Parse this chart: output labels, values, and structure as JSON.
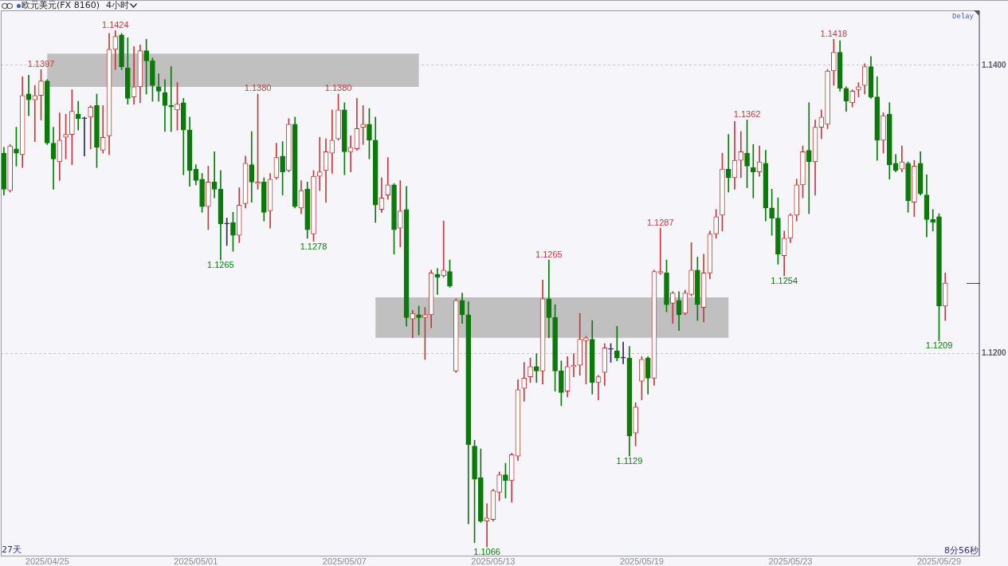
{
  "chart_data": {
    "type": "candlestick",
    "title": "欧元美元(FX 8160)",
    "subtitle": "4小时",
    "categories": [
      null,
      null,
      null,
      null,
      null,
      null,
      null,
      "2025/04/25",
      null,
      null,
      null,
      null,
      null,
      null,
      null,
      null,
      null,
      null,
      null,
      null,
      null,
      null,
      null,
      null,
      null,
      null,
      null,
      null,
      null,
      null,
      null,
      "2025/05/01",
      null,
      null,
      null,
      null,
      null,
      null,
      null,
      null,
      null,
      null,
      null,
      null,
      null,
      null,
      null,
      null,
      null,
      null,
      null,
      null,
      null,
      null,
      null,
      "2025/05/07",
      null,
      null,
      null,
      null,
      null,
      null,
      null,
      null,
      null,
      null,
      null,
      null,
      null,
      null,
      null,
      null,
      null,
      null,
      null,
      null,
      null,
      null,
      null,
      "2025/05/13",
      null,
      null,
      null,
      null,
      null,
      null,
      null,
      null,
      null,
      null,
      null,
      null,
      null,
      null,
      null,
      null,
      null,
      null,
      null,
      null,
      null,
      null,
      null,
      "2025/05/19",
      null,
      null,
      null,
      null,
      null,
      null,
      null,
      null,
      null,
      null,
      null,
      null,
      null,
      null,
      null,
      null,
      null,
      null,
      null,
      null,
      null,
      null,
      null,
      "2025/05/23",
      null,
      null,
      null,
      null,
      null,
      null,
      null,
      null,
      null,
      null,
      null,
      null,
      null,
      null,
      null,
      null,
      null,
      null,
      null,
      null,
      null,
      null,
      null,
      "2025/05/29",
      null,
      null,
      null,
      null,
      null,
      null
    ],
    "ohlc": [
      [
        1.1339,
        1.1343,
        1.131,
        1.1314
      ],
      [
        1.1313,
        1.1345,
        1.1312,
        1.1344
      ],
      [
        1.1342,
        1.1357,
        1.133,
        1.1339
      ],
      [
        1.1338,
        1.1392,
        1.1329,
        1.1379
      ],
      [
        1.138,
        1.1393,
        1.1365,
        1.1376
      ],
      [
        1.1376,
        1.1386,
        1.1347,
        1.1379
      ],
      [
        1.1379,
        1.1397,
        1.1362,
        1.1389
      ],
      [
        1.1389,
        1.139,
        1.1345,
        1.1346
      ],
      [
        1.1346,
        1.1357,
        1.1314,
        1.1335
      ],
      [
        1.1333,
        1.1367,
        1.132,
        1.1348
      ],
      [
        1.135,
        1.1366,
        1.1335,
        1.1352
      ],
      [
        1.1352,
        1.1383,
        1.1331,
        1.1368
      ],
      [
        1.1366,
        1.1375,
        1.1355,
        1.1363
      ],
      [
        1.1363,
        1.1364,
        1.1337,
        1.1363
      ],
      [
        1.1364,
        1.1372,
        1.1342,
        1.1371
      ],
      [
        1.1372,
        1.138,
        1.1329,
        1.1343
      ],
      [
        1.1341,
        1.1372,
        1.1339,
        1.135
      ],
      [
        1.1351,
        1.1422,
        1.1338,
        1.1411
      ],
      [
        1.1411,
        1.1424,
        1.1397,
        1.142
      ],
      [
        1.1421,
        1.1422,
        1.1397,
        1.1399
      ],
      [
        1.1398,
        1.1419,
        1.1373,
        1.1377
      ],
      [
        1.1378,
        1.1413,
        1.1373,
        1.1385
      ],
      [
        1.1385,
        1.1414,
        1.1374,
        1.141
      ],
      [
        1.141,
        1.1418,
        1.138,
        1.1403
      ],
      [
        1.1403,
        1.1405,
        1.1375,
        1.1386
      ],
      [
        1.1385,
        1.1394,
        1.1375,
        1.1382
      ],
      [
        1.1381,
        1.139,
        1.1354,
        1.1372
      ],
      [
        1.1372,
        1.1399,
        1.1354,
        1.1371
      ],
      [
        1.1369,
        1.1388,
        1.1355,
        1.1373
      ],
      [
        1.1374,
        1.1377,
        1.1324,
        1.1355
      ],
      [
        1.1355,
        1.1364,
        1.1316,
        1.1327
      ],
      [
        1.1328,
        1.1331,
        1.1317,
        1.132
      ],
      [
        1.1321,
        1.1325,
        1.1298,
        1.1302
      ],
      [
        1.1302,
        1.133,
        1.1286,
        1.1319
      ],
      [
        1.1319,
        1.134,
        1.1308,
        1.1314
      ],
      [
        1.1314,
        1.1327,
        1.1265,
        1.129
      ],
      [
        1.129,
        1.1294,
        1.1275,
        1.129
      ],
      [
        1.1291,
        1.1298,
        1.1271,
        1.1282
      ],
      [
        1.1282,
        1.1315,
        1.1277,
        1.1303
      ],
      [
        1.1304,
        1.1337,
        1.1301,
        1.1332
      ],
      [
        1.1331,
        1.1354,
        1.1305,
        1.1319
      ],
      [
        1.1318,
        1.138,
        1.1314,
        1.1319
      ],
      [
        1.1319,
        1.1322,
        1.1292,
        1.1298
      ],
      [
        1.1299,
        1.1325,
        1.1287,
        1.1321
      ],
      [
        1.1322,
        1.1346,
        1.1321,
        1.1336
      ],
      [
        1.1337,
        1.1347,
        1.131,
        1.1326
      ],
      [
        1.1327,
        1.1363,
        1.1326,
        1.1359
      ],
      [
        1.1359,
        1.1364,
        1.1301,
        1.1302
      ],
      [
        1.1301,
        1.132,
        1.1297,
        1.1313
      ],
      [
        1.1314,
        1.1319,
        1.128,
        1.1286
      ],
      [
        1.1283,
        1.1327,
        1.1278,
        1.1323
      ],
      [
        1.1323,
        1.135,
        1.1313,
        1.1326
      ],
      [
        1.1327,
        1.1349,
        1.1305,
        1.134
      ],
      [
        1.1339,
        1.1369,
        1.1325,
        1.1348
      ],
      [
        1.1349,
        1.138,
        1.1348,
        1.1369
      ],
      [
        1.1369,
        1.1374,
        1.1324,
        1.134
      ],
      [
        1.134,
        1.1351,
        1.1326,
        1.1343
      ],
      [
        1.1342,
        1.1377,
        1.1341,
        1.1356
      ],
      [
        1.1357,
        1.1372,
        1.1345,
        1.1359
      ],
      [
        1.1359,
        1.137,
        1.1335,
        1.1348
      ],
      [
        1.1348,
        1.1364,
        1.1291,
        1.1303
      ],
      [
        1.13,
        1.1322,
        1.1298,
        1.1308
      ],
      [
        1.131,
        1.1336,
        1.1307,
        1.1317
      ],
      [
        1.1317,
        1.1318,
        1.1269,
        1.1286
      ],
      [
        1.1287,
        1.132,
        1.1274,
        1.1299
      ],
      [
        1.13,
        1.1316,
        1.1219,
        1.1225
      ],
      [
        1.1224,
        1.123,
        1.1211,
        1.1228
      ],
      [
        1.1227,
        1.1233,
        1.1213,
        1.1225
      ],
      [
        1.1225,
        1.1232,
        1.1196,
        1.1227
      ],
      [
        1.1227,
        1.1258,
        1.1218,
        1.1256
      ],
      [
        1.1255,
        1.1259,
        1.1241,
        1.1253
      ],
      [
        1.1254,
        1.1292,
        1.1253,
        1.1258
      ],
      [
        1.1257,
        1.1265,
        1.1246,
        1.1247
      ],
      [
        1.1188,
        1.1238,
        1.1187,
        1.1237
      ],
      [
        1.1237,
        1.1242,
        1.1221,
        1.1227
      ],
      [
        1.1227,
        1.1236,
        1.1082,
        1.1137
      ],
      [
        1.1136,
        1.114,
        1.1069,
        1.1113
      ],
      [
        1.1114,
        1.1134,
        1.1083,
        1.1084
      ],
      [
        1.1084,
        1.1096,
        1.1066,
        1.1086
      ],
      [
        1.1085,
        1.1106,
        1.1084,
        1.1105
      ],
      [
        1.1104,
        1.1118,
        1.1098,
        1.1116
      ],
      [
        1.1116,
        1.1124,
        1.11,
        1.1112
      ],
      [
        1.1112,
        1.1131,
        1.1097,
        1.113
      ],
      [
        1.1129,
        1.1182,
        1.1126,
        1.1175
      ],
      [
        1.1176,
        1.1194,
        1.1167,
        1.1183
      ],
      [
        1.1184,
        1.1197,
        1.118,
        1.1191
      ],
      [
        1.1191,
        1.12,
        1.118,
        1.1188
      ],
      [
        1.1188,
        1.1251,
        1.1179,
        1.1238
      ],
      [
        1.1238,
        1.1265,
        1.1211,
        1.1225
      ],
      [
        1.1225,
        1.1234,
        1.1174,
        1.1188
      ],
      [
        1.1188,
        1.1195,
        1.1164,
        1.1173
      ],
      [
        1.1174,
        1.1198,
        1.117,
        1.1191
      ],
      [
        1.1191,
        1.12,
        1.1184,
        1.1192
      ],
      [
        1.1192,
        1.1228,
        1.1185,
        1.121
      ],
      [
        1.1209,
        1.1212,
        1.1179,
        1.1211
      ],
      [
        1.121,
        1.1223,
        1.1172,
        1.118
      ],
      [
        1.118,
        1.1185,
        1.1168,
        1.1184
      ],
      [
        1.1187,
        1.1207,
        1.1178,
        1.1204
      ],
      [
        1.1203,
        1.1207,
        1.1194,
        1.1203
      ],
      [
        1.1202,
        1.1219,
        1.1195,
        1.1197
      ],
      [
        1.1197,
        1.1208,
        1.1193,
        1.1197
      ],
      [
        1.1197,
        1.1205,
        1.1129,
        1.1143
      ],
      [
        1.1145,
        1.1166,
        1.1136,
        1.1163
      ],
      [
        1.1181,
        1.1198,
        1.1168,
        1.1196
      ],
      [
        1.1197,
        1.1198,
        1.1172,
        1.1183
      ],
      [
        1.1183,
        1.1258,
        1.1178,
        1.1257
      ],
      [
        1.1256,
        1.1287,
        1.1255,
        1.1257
      ],
      [
        1.1256,
        1.1265,
        1.1229,
        1.1234
      ],
      [
        1.1235,
        1.1243,
        1.1221,
        1.1242
      ],
      [
        1.1237,
        1.1243,
        1.1216,
        1.1227
      ],
      [
        1.1228,
        1.1244,
        1.1227,
        1.1242
      ],
      [
        1.1241,
        1.1277,
        1.124,
        1.1258
      ],
      [
        1.1258,
        1.1267,
        1.1223,
        1.1234
      ],
      [
        1.1232,
        1.1269,
        1.1222,
        1.1256
      ],
      [
        1.1256,
        1.1285,
        1.1252,
        1.1283
      ],
      [
        1.1283,
        1.13,
        1.128,
        1.1295
      ],
      [
        1.1296,
        1.1339,
        1.1285,
        1.1328
      ],
      [
        1.1328,
        1.1352,
        1.1312,
        1.1322
      ],
      [
        1.1322,
        1.1361,
        1.1314,
        1.1334
      ],
      [
        1.1334,
        1.1354,
        1.1322,
        1.134
      ],
      [
        1.1339,
        1.1362,
        1.1315,
        1.133
      ],
      [
        1.1329,
        1.1345,
        1.1308,
        1.1326
      ],
      [
        1.1326,
        1.1344,
        1.1323,
        1.1333
      ],
      [
        1.1332,
        1.1341,
        1.1292,
        1.1301
      ],
      [
        1.1301,
        1.1314,
        1.1282,
        1.1294
      ],
      [
        1.1294,
        1.1308,
        1.1262,
        1.1269
      ],
      [
        1.1268,
        1.1285,
        1.1254,
        1.128
      ],
      [
        1.128,
        1.1297,
        1.1277,
        1.1296
      ],
      [
        1.1296,
        1.1321,
        1.1292,
        1.1317
      ],
      [
        1.1317,
        1.1344,
        1.1308,
        1.134
      ],
      [
        1.1341,
        1.1374,
        1.1297,
        1.1333
      ],
      [
        1.1333,
        1.1362,
        1.131,
        1.1357
      ],
      [
        1.1357,
        1.1369,
        1.1349,
        1.1364
      ],
      [
        1.1359,
        1.1397,
        1.1356,
        1.1396
      ],
      [
        1.1396,
        1.1418,
        1.1386,
        1.1409
      ],
      [
        1.1409,
        1.1417,
        1.1382,
        1.1384
      ],
      [
        1.1384,
        1.1385,
        1.1368,
        1.1375
      ],
      [
        1.1374,
        1.1383,
        1.1371,
        1.1382
      ],
      [
        1.1383,
        1.1388,
        1.1378,
        1.1385
      ],
      [
        1.1386,
        1.1401,
        1.138,
        1.1399
      ],
      [
        1.1399,
        1.1406,
        1.1377,
        1.1378
      ],
      [
        1.1378,
        1.1392,
        1.1334,
        1.1348
      ],
      [
        1.1348,
        1.1367,
        1.1339,
        1.1365
      ],
      [
        1.1366,
        1.1374,
        1.1321,
        1.1331
      ],
      [
        1.1332,
        1.1338,
        1.1326,
        1.1327
      ],
      [
        1.1328,
        1.1344,
        1.1326,
        1.1333
      ],
      [
        1.1332,
        1.1333,
        1.1298,
        1.1306
      ],
      [
        1.1305,
        1.1334,
        1.1295,
        1.133
      ],
      [
        1.1332,
        1.134,
        1.131,
        1.1311
      ],
      [
        1.131,
        1.1324,
        1.1281,
        1.1293
      ],
      [
        1.1293,
        1.13,
        1.1285,
        1.1291
      ],
      [
        1.1295,
        1.1297,
        1.1209,
        1.1233
      ],
      [
        1.1233,
        1.1256,
        1.1223,
        1.1249
      ],
      null,
      null,
      null,
      null,
      null
    ],
    "colors": [
      "#0b7a0b",
      "#c23b3b",
      "#0b7a0b",
      "#c23b3b",
      "#0b7a0b",
      "#c23b3b",
      "#c23b3b",
      "#0b7a0b",
      "#0b7a0b",
      "#c23b3b",
      "#c23b3b",
      "#c23b3b",
      "#0b7a0b",
      "#2a2a5a",
      "#c23b3b",
      "#0b7a0b",
      "#c23b3b",
      "#c23b3b",
      "#c23b3b",
      "#0b7a0b",
      "#0b7a0b",
      "#c23b3b",
      "#c23b3b",
      "#0b7a0b",
      "#0b7a0b",
      "#0b7a0b",
      "#0b7a0b",
      "#0b7a0b",
      "#c23b3b",
      "#0b7a0b",
      "#0b7a0b",
      "#0b7a0b",
      "#0b7a0b",
      "#c23b3b",
      "#0b7a0b",
      "#0b7a0b",
      "#2a2a5a",
      "#0b7a0b",
      "#c23b3b",
      "#c23b3b",
      "#0b7a0b",
      "#c23b3b",
      "#0b7a0b",
      "#c23b3b",
      "#c23b3b",
      "#0b7a0b",
      "#c23b3b",
      "#0b7a0b",
      "#c23b3b",
      "#0b7a0b",
      "#c23b3b",
      "#c23b3b",
      "#c23b3b",
      "#c23b3b",
      "#c23b3b",
      "#0b7a0b",
      "#c23b3b",
      "#c23b3b",
      "#c23b3b",
      "#0b7a0b",
      "#0b7a0b",
      "#c23b3b",
      "#c23b3b",
      "#0b7a0b",
      "#c23b3b",
      "#0b7a0b",
      "#c23b3b",
      "#0b7a0b",
      "#c23b3b",
      "#c23b3b",
      "#0b7a0b",
      "#c23b3b",
      "#0b7a0b",
      "#c23b3b",
      "#0b7a0b",
      "#0b7a0b",
      "#0b7a0b",
      "#0b7a0b",
      "#c23b3b",
      "#c23b3b",
      "#c23b3b",
      "#0b7a0b",
      "#c23b3b",
      "#c23b3b",
      "#c23b3b",
      "#c23b3b",
      "#0b7a0b",
      "#c23b3b",
      "#0b7a0b",
      "#0b7a0b",
      "#0b7a0b",
      "#c23b3b",
      "#c23b3b",
      "#c23b3b",
      "#c23b3b",
      "#0b7a0b",
      "#c23b3b",
      "#c23b3b",
      "#2a2a5a",
      "#0b7a0b",
      "#2a2a5a",
      "#0b7a0b",
      "#c23b3b",
      "#c23b3b",
      "#0b7a0b",
      "#c23b3b",
      "#c23b3b",
      "#0b7a0b",
      "#c23b3b",
      "#0b7a0b",
      "#c23b3b",
      "#c23b3b",
      "#0b7a0b",
      "#c23b3b",
      "#c23b3b",
      "#c23b3b",
      "#c23b3b",
      "#0b7a0b",
      "#c23b3b",
      "#c23b3b",
      "#0b7a0b",
      "#0b7a0b",
      "#c23b3b",
      "#0b7a0b",
      "#0b7a0b",
      "#0b7a0b",
      "#c23b3b",
      "#c23b3b",
      "#c23b3b",
      "#c23b3b",
      "#0b7a0b",
      "#c23b3b",
      "#c23b3b",
      "#c23b3b",
      "#c23b3b",
      "#0b7a0b",
      "#0b7a0b",
      "#c23b3b",
      "#c23b3b",
      "#c23b3b",
      "#0b7a0b",
      "#0b7a0b",
      "#c23b3b",
      "#0b7a0b",
      "#0b7a0b",
      "#c23b3b",
      "#0b7a0b",
      "#c23b3b",
      "#0b7a0b",
      "#0b7a0b",
      "#0b7a0b",
      "#0b7a0b",
      "#c23b3b",
      null,
      null,
      null,
      null,
      null
    ],
    "ylim": [
      1.106,
      1.1438
    ],
    "yticks": [
      {
        "value": 1.12,
        "label": "1.1200"
      },
      {
        "value": 1.14,
        "label": "1.1400"
      }
    ],
    "grid": "y",
    "bands": [
      {
        "axis": "y",
        "from": 1.1385,
        "to": 1.1408,
        "color": "#c0c0c0"
      },
      {
        "axis": "y",
        "from": 1.1211,
        "to": 1.1239,
        "color": "#c0c0c0"
      }
    ],
    "annotations": [
      "Delay",
      {
        "text": "1.1397",
        "y": 1.1397
      },
      {
        "text": "1.1424",
        "y": 1.1424
      },
      {
        "text": "1.1265",
        "y": 1.1265
      },
      {
        "text": "1.1380",
        "y": 1.138
      },
      {
        "text": "1.1278",
        "y": 1.1278
      },
      {
        "text": "1.1380",
        "y": 1.138
      },
      {
        "text": "1.1066",
        "y": 1.1066
      },
      {
        "text": "1.1265",
        "y": 1.1265
      },
      {
        "text": "1.1129",
        "y": 1.1129
      },
      {
        "text": "1.1287",
        "y": 1.1287
      },
      {
        "text": "1.1362",
        "y": 1.1362
      },
      {
        "text": "1.1254",
        "y": 1.1254
      },
      {
        "text": "1.1418",
        "y": 1.1418
      },
      {
        "text": "1.1209",
        "y": 1.1209
      },
      "27天",
      "8分56秒"
    ]
  }
}
